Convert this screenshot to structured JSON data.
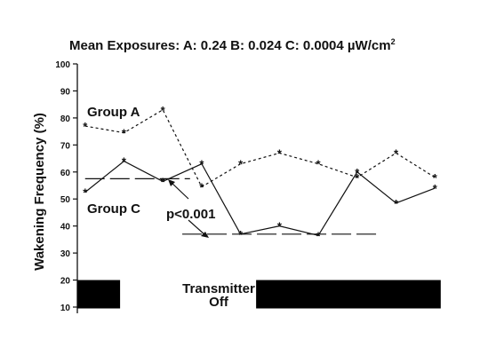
{
  "chart_data": {
    "type": "line",
    "title": "Mean Exposures:  A: 0.24  B: 0.024  C: 0.0004 µW/cm",
    "title_superscript": "2",
    "xlabel": "",
    "ylabel": "Wakening Frequency (%)",
    "ylim": [
      10,
      100
    ],
    "yticks": [
      10,
      20,
      30,
      40,
      50,
      60,
      70,
      80,
      90,
      100
    ],
    "grid": false,
    "x": [
      1,
      2,
      3,
      4,
      5,
      6,
      7,
      8,
      9,
      10,
      11
    ],
    "series": [
      {
        "name": "Group A",
        "style": "dotted",
        "values": [
          77,
          74.5,
          83,
          54.5,
          63,
          67,
          63,
          58,
          67,
          58
        ],
        "x": [
          1,
          2,
          3,
          4,
          5,
          6,
          7,
          8,
          9,
          10
        ]
      },
      {
        "name": "Group C",
        "style": "solid",
        "values": [
          52.5,
          64,
          56.5,
          63,
          37,
          40,
          36.5,
          60,
          48.5,
          54
        ],
        "x": [
          1,
          2,
          3,
          4,
          5,
          6,
          7,
          8,
          9,
          10
        ]
      }
    ],
    "mean_lines": [
      {
        "y": 57.5,
        "x_from": 1,
        "x_to": 3.7
      },
      {
        "y": 37,
        "x_from": 3.5,
        "x_to": 8.6
      }
    ],
    "annotations": {
      "significance": "p<0.001",
      "transmitter": "Transmitter",
      "off": "Off"
    },
    "colors": {
      "line": "#111111",
      "bar": "#000000",
      "background": "#ffffff"
    }
  }
}
